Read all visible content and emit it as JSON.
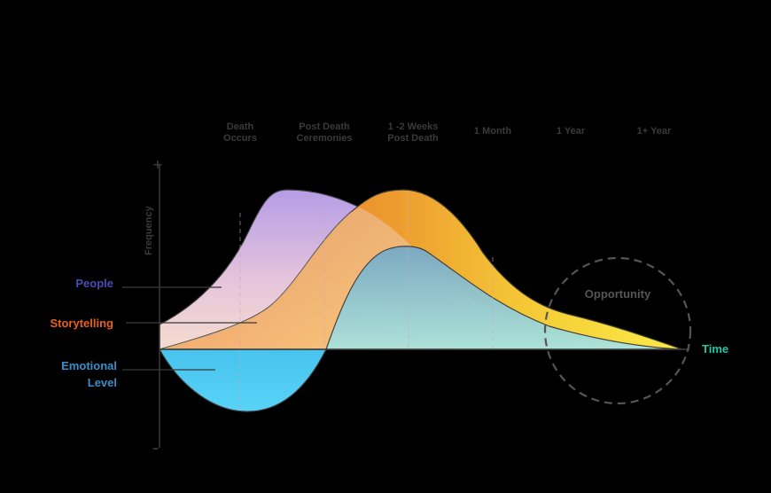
{
  "colors": {
    "background": "#000000",
    "people": "#4a4ab3",
    "storytelling": "#e8601c",
    "emotional": "#3a8fc8",
    "time": "#1fc7a5",
    "axis": "#3a3a3a",
    "opportunity": "#555555"
  },
  "axis": {
    "y_label": "Frequency",
    "y_plus": "+",
    "y_minus": "–",
    "x_label": "Time"
  },
  "stages": [
    {
      "line1": "Death",
      "line2": "Occurs"
    },
    {
      "line1": "Post Death",
      "line2": "Ceremonies"
    },
    {
      "line1": "1 -2 Weeks",
      "line2": "Post Death"
    },
    {
      "line1": "1 Month",
      "line2": ""
    },
    {
      "line1": "1 Year",
      "line2": ""
    },
    {
      "line1": "1+ Year",
      "line2": ""
    }
  ],
  "legend": {
    "people": "People",
    "storytelling": "Storytelling",
    "emotional_line1": "Emotional",
    "emotional_line2": "Level"
  },
  "opportunity": "Opportunity"
}
